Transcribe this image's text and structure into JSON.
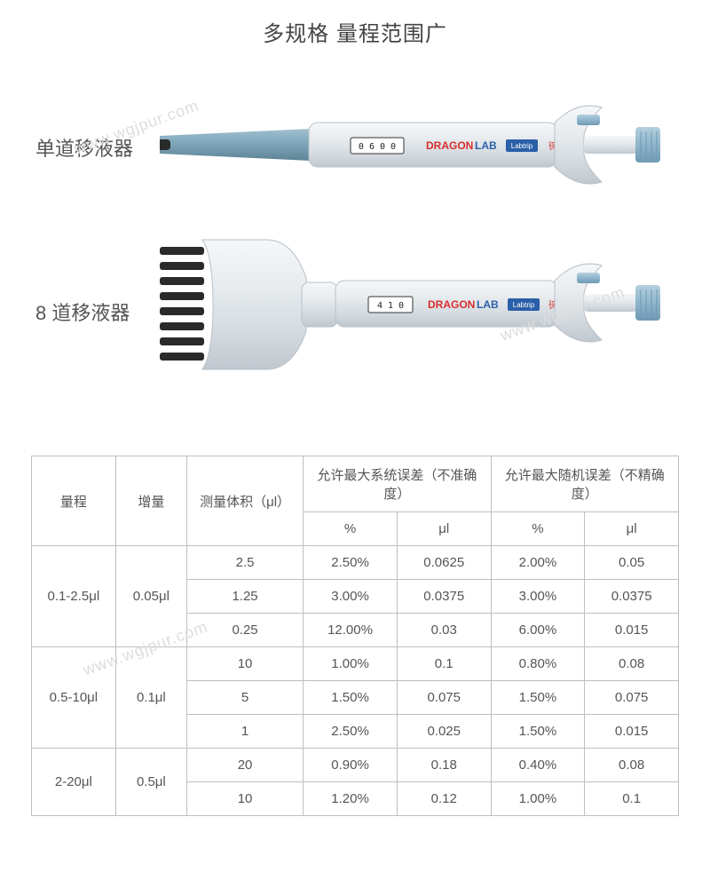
{
  "title": "多规格 量程范围广",
  "watermark": "www.wgjpur.com",
  "products": {
    "single": {
      "label": "单道移液器",
      "display": "0 6 0 0",
      "brand1": "DRAGON",
      "brand1b": "LAB",
      "brand2": "Labtrip",
      "brand3": "徕谱"
    },
    "multi": {
      "label": "8 道移液器",
      "display": "4 1 0",
      "brand1": "DRAGON",
      "brand1b": "LAB",
      "brand2": "Labtrip",
      "brand3": "徕谱"
    }
  },
  "colors": {
    "body_light": "#e8ecef",
    "body_shade": "#c9d0d6",
    "tip_blue": "#7ba3b8",
    "tip_blue_dark": "#5e8396",
    "plunger_blue": "#8fb5cc",
    "dark_tip": "#2a2a2a",
    "brand_red": "#d92e2e",
    "brand_blue": "#2b5fa8",
    "display_bg": "#1a1a1a",
    "border": "#bfbfbf"
  },
  "table": {
    "headers": {
      "range": "量程",
      "increment": "增量",
      "volume": "测量体积（μl）",
      "sys_error": "允许最大系统误差（不准确度）",
      "rnd_error": "允许最大随机误差（不精确度）",
      "pct": "%",
      "ul": "μl"
    },
    "groups": [
      {
        "range": "0.1-2.5μl",
        "increment": "0.05μl",
        "rows": [
          {
            "vol": "2.5",
            "sys_pct": "2.50%",
            "sys_ul": "0.0625",
            "rnd_pct": "2.00%",
            "rnd_ul": "0.05"
          },
          {
            "vol": "1.25",
            "sys_pct": "3.00%",
            "sys_ul": "0.0375",
            "rnd_pct": "3.00%",
            "rnd_ul": "0.0375"
          },
          {
            "vol": "0.25",
            "sys_pct": "12.00%",
            "sys_ul": "0.03",
            "rnd_pct": "6.00%",
            "rnd_ul": "0.015"
          }
        ]
      },
      {
        "range": "0.5-10μl",
        "increment": "0.1μl",
        "rows": [
          {
            "vol": "10",
            "sys_pct": "1.00%",
            "sys_ul": "0.1",
            "rnd_pct": "0.80%",
            "rnd_ul": "0.08"
          },
          {
            "vol": "5",
            "sys_pct": "1.50%",
            "sys_ul": "0.075",
            "rnd_pct": "1.50%",
            "rnd_ul": "0.075"
          },
          {
            "vol": "1",
            "sys_pct": "2.50%",
            "sys_ul": "0.025",
            "rnd_pct": "1.50%",
            "rnd_ul": "0.015"
          }
        ]
      },
      {
        "range": "2-20μl",
        "increment": "0.5μl",
        "rows": [
          {
            "vol": "20",
            "sys_pct": "0.90%",
            "sys_ul": "0.18",
            "rnd_pct": "0.40%",
            "rnd_ul": "0.08"
          },
          {
            "vol": "10",
            "sys_pct": "1.20%",
            "sys_ul": "0.12",
            "rnd_pct": "1.00%",
            "rnd_ul": "0.1"
          }
        ]
      }
    ]
  }
}
